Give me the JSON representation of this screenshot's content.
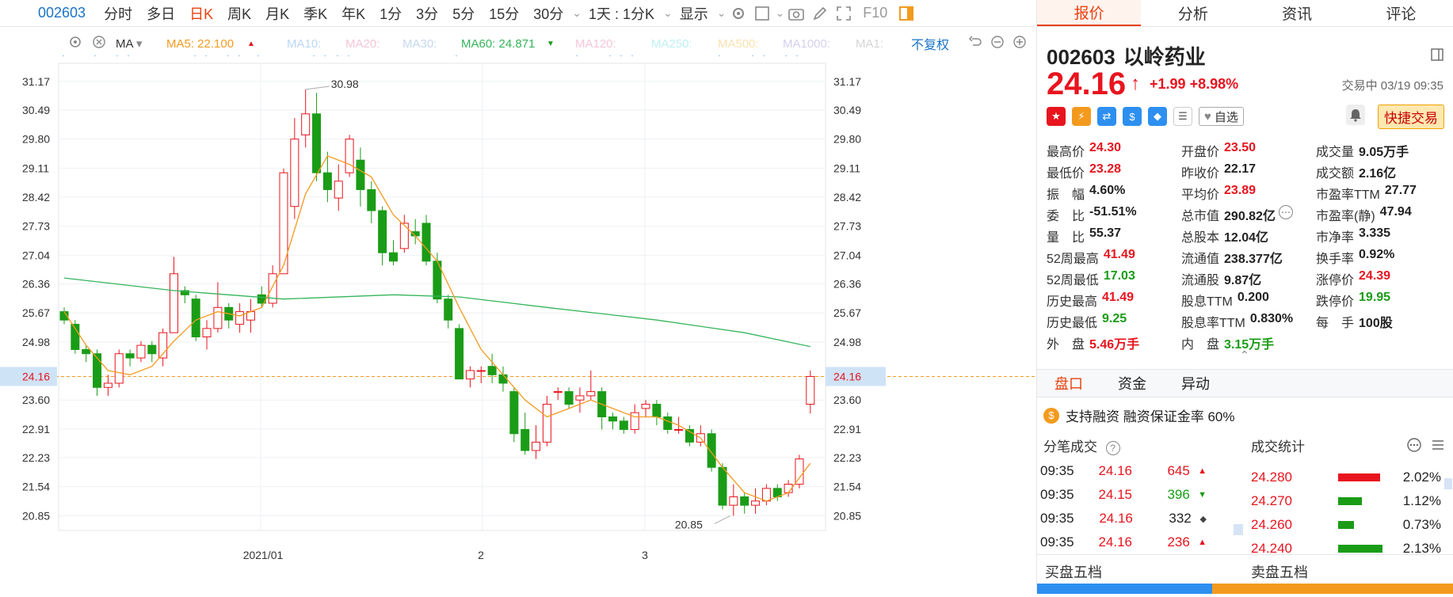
{
  "toolbar": {
    "code": "002603",
    "periods": [
      "分时",
      "多日",
      "日K",
      "周K",
      "月K",
      "季K",
      "年K",
      "1分",
      "3分",
      "5分",
      "15分",
      "30分"
    ],
    "active_period": "日K",
    "interval_select": "1天 : 1分K",
    "display_label": "显示",
    "f10": "F10"
  },
  "ma_bar": {
    "ma_label": "MA",
    "ma5": "MA5: 22.100",
    "ma10": "MA10:",
    "ma20": "MA20:",
    "ma30": "MA30:",
    "ma60": "MA60: 24.871",
    "ma120": "MA120:",
    "ma250": "MA250:",
    "ma500": "MA500:",
    "ma1000": "MA1000:",
    "ma1": "MA1:",
    "restore": "不复权"
  },
  "colors": {
    "up": "#e8141e",
    "down": "#1a9c17",
    "ma5": "#f39a1e",
    "ma60": "#34b45a",
    "accent": "#e8410f",
    "grid": "#eef0f4"
  },
  "chart_data": {
    "type": "candlestick",
    "y_ticks": [
      "31.17",
      "30.49",
      "29.80",
      "29.11",
      "28.42",
      "27.73",
      "27.04",
      "26.36",
      "25.67",
      "24.98",
      "24.16",
      "23.60",
      "22.91",
      "22.23",
      "21.54",
      "20.85"
    ],
    "ylim": [
      20.5,
      31.6
    ],
    "x_labels": [
      "2021/01",
      "2",
      "3"
    ],
    "current_price_label": "24.16",
    "high_annotation": "30.98",
    "low_annotation": "20.85",
    "candles": [
      [
        25.7,
        25.5,
        25.8,
        25.4
      ],
      [
        25.4,
        24.8,
        25.5,
        24.7
      ],
      [
        24.8,
        24.7,
        24.9,
        24.5
      ],
      [
        24.7,
        23.9,
        24.8,
        23.7
      ],
      [
        23.9,
        24.0,
        24.2,
        23.7
      ],
      [
        24.0,
        24.7,
        24.8,
        23.9
      ],
      [
        24.7,
        24.6,
        24.8,
        24.4
      ],
      [
        24.6,
        24.9,
        25.0,
        24.5
      ],
      [
        24.9,
        24.7,
        25.0,
        24.5
      ],
      [
        24.6,
        25.2,
        25.3,
        24.4
      ],
      [
        25.2,
        26.6,
        27.0,
        25.2
      ],
      [
        26.2,
        26.1,
        26.3,
        25.9
      ],
      [
        26.0,
        25.1,
        26.1,
        25.0
      ],
      [
        25.1,
        25.3,
        25.5,
        24.8
      ],
      [
        25.3,
        25.8,
        26.4,
        25.2
      ],
      [
        25.8,
        25.5,
        25.9,
        25.3
      ],
      [
        25.4,
        25.7,
        25.9,
        25.2
      ],
      [
        25.5,
        25.7,
        26.0,
        25.2
      ],
      [
        26.1,
        25.9,
        26.3,
        25.8
      ],
      [
        25.9,
        26.6,
        26.8,
        25.8
      ],
      [
        26.6,
        29.0,
        29.1,
        26.6
      ],
      [
        28.2,
        29.8,
        30.3,
        27.9
      ],
      [
        29.9,
        30.4,
        30.98,
        29.6
      ],
      [
        30.4,
        29.0,
        30.9,
        28.8
      ],
      [
        29.0,
        28.6,
        29.5,
        28.3
      ],
      [
        28.4,
        28.8,
        29.2,
        28.1
      ],
      [
        29.0,
        29.8,
        29.9,
        28.9
      ],
      [
        29.3,
        28.6,
        29.6,
        28.2
      ],
      [
        28.6,
        28.1,
        28.8,
        27.8
      ],
      [
        28.1,
        27.1,
        28.2,
        26.8
      ],
      [
        27.1,
        26.9,
        27.4,
        26.8
      ],
      [
        27.2,
        27.8,
        28.0,
        27.1
      ],
      [
        27.6,
        27.5,
        27.9,
        27.3
      ],
      [
        27.8,
        26.9,
        28.0,
        26.8
      ],
      [
        26.9,
        26.0,
        27.1,
        25.9
      ],
      [
        26.0,
        25.5,
        26.1,
        25.3
      ],
      [
        25.3,
        24.1,
        25.4,
        24.1
      ],
      [
        24.1,
        24.3,
        24.4,
        23.9
      ],
      [
        24.3,
        24.3,
        24.4,
        24.0
      ],
      [
        24.4,
        24.2,
        24.7,
        24.0
      ],
      [
        24.2,
        24.0,
        24.4,
        23.8
      ],
      [
        23.8,
        22.8,
        23.9,
        22.6
      ],
      [
        22.9,
        22.4,
        23.3,
        22.3
      ],
      [
        22.4,
        22.6,
        23.0,
        22.2
      ],
      [
        22.6,
        23.5,
        23.7,
        22.5
      ],
      [
        23.8,
        23.8,
        23.9,
        23.6
      ],
      [
        23.8,
        23.5,
        23.9,
        23.4
      ],
      [
        23.6,
        23.7,
        23.9,
        23.3
      ],
      [
        23.7,
        23.8,
        24.3,
        23.6
      ],
      [
        23.8,
        23.2,
        23.9,
        22.9
      ],
      [
        23.2,
        23.1,
        23.3,
        22.9
      ],
      [
        23.1,
        22.9,
        23.2,
        22.8
      ],
      [
        22.9,
        23.3,
        23.5,
        22.8
      ],
      [
        23.4,
        23.5,
        23.6,
        23.2
      ],
      [
        23.5,
        23.2,
        23.6,
        23.0
      ],
      [
        23.2,
        22.9,
        23.3,
        22.8
      ],
      [
        22.9,
        22.9,
        23.2,
        22.8
      ],
      [
        22.9,
        22.6,
        23.0,
        22.5
      ],
      [
        22.6,
        22.8,
        23.0,
        22.5
      ],
      [
        22.8,
        22.0,
        22.9,
        21.9
      ],
      [
        22.0,
        21.1,
        22.1,
        21.0
      ],
      [
        21.1,
        21.3,
        21.6,
        20.85
      ],
      [
        21.3,
        21.1,
        21.4,
        20.9
      ],
      [
        21.1,
        21.2,
        21.5,
        20.9
      ],
      [
        21.2,
        21.5,
        21.6,
        21.1
      ],
      [
        21.5,
        21.3,
        21.6,
        21.2
      ],
      [
        21.4,
        21.6,
        21.7,
        21.3
      ],
      [
        21.6,
        22.2,
        22.3,
        21.5
      ],
      [
        23.5,
        24.16,
        24.3,
        23.28
      ]
    ],
    "ma5": [
      [
        0,
        25.7
      ],
      [
        2,
        24.9
      ],
      [
        4,
        24.3
      ],
      [
        6,
        24.2
      ],
      [
        8,
        24.4
      ],
      [
        10,
        25.0
      ],
      [
        12,
        25.5
      ],
      [
        14,
        25.7
      ],
      [
        16,
        25.6
      ],
      [
        18,
        25.8
      ],
      [
        20,
        26.8
      ],
      [
        22,
        28.5
      ],
      [
        24,
        29.4
      ],
      [
        26,
        29.2
      ],
      [
        28,
        28.9
      ],
      [
        30,
        28.0
      ],
      [
        32,
        27.5
      ],
      [
        34,
        26.9
      ],
      [
        36,
        25.8
      ],
      [
        38,
        24.8
      ],
      [
        40,
        24.2
      ],
      [
        42,
        23.6
      ],
      [
        44,
        23.2
      ],
      [
        46,
        23.4
      ],
      [
        48,
        23.6
      ],
      [
        50,
        23.4
      ],
      [
        52,
        23.2
      ],
      [
        54,
        23.2
      ],
      [
        56,
        23.0
      ],
      [
        58,
        22.7
      ],
      [
        60,
        22.0
      ],
      [
        62,
        21.4
      ],
      [
        64,
        21.2
      ],
      [
        66,
        21.4
      ],
      [
        68,
        22.1
      ]
    ],
    "ma60": [
      [
        0,
        26.5
      ],
      [
        10,
        26.2
      ],
      [
        20,
        26.0
      ],
      [
        30,
        26.1
      ],
      [
        36,
        26.05
      ],
      [
        44,
        25.8
      ],
      [
        54,
        25.5
      ],
      [
        62,
        25.2
      ],
      [
        68,
        24.87
      ]
    ]
  },
  "stock": {
    "code": "002603",
    "name": "以岭药业",
    "price": "24.16",
    "change": "+1.99",
    "change_pct": "+8.98%",
    "status": "交易中 03/19 09:35"
  },
  "icons_row": {
    "zixuan_label": "自选",
    "fast_trade": "快捷交易"
  },
  "right_tabs": [
    "报价",
    "分析",
    "资讯",
    "评论"
  ],
  "quote": [
    [
      {
        "label": "最高价",
        "value": "24.30",
        "color": "red"
      },
      {
        "label": "开盘价",
        "value": "23.50",
        "color": "red"
      },
      {
        "label": "成交量",
        "value": "9.05万手",
        "color": "dark"
      }
    ],
    [
      {
        "label": "最低价",
        "value": "23.28",
        "color": "red"
      },
      {
        "label": "昨收价",
        "value": "22.17",
        "color": "dark"
      },
      {
        "label": "成交额",
        "value": "2.16亿",
        "color": "dark"
      }
    ],
    [
      {
        "label": "振　幅",
        "value": "4.60%",
        "color": "dark"
      },
      {
        "label": "平均价",
        "value": "23.89",
        "color": "red"
      },
      {
        "label": "市盈率TTM",
        "value": "27.77",
        "color": "dark"
      }
    ],
    [
      {
        "label": "委　比",
        "value": "-51.51%",
        "color": "dark"
      },
      {
        "label": "总市值",
        "value": "290.82亿",
        "color": "dark"
      },
      {
        "label": "市盈率(静)",
        "value": "47.94",
        "color": "dark"
      }
    ],
    [
      {
        "label": "量　比",
        "value": "55.37",
        "color": "dark"
      },
      {
        "label": "总股本",
        "value": "12.04亿",
        "color": "dark"
      },
      {
        "label": "市净率",
        "value": "3.335",
        "color": "dark"
      }
    ],
    [
      {
        "label": "52周最高",
        "value": "41.49",
        "color": "red"
      },
      {
        "label": "流通值",
        "value": "238.377亿",
        "color": "dark"
      },
      {
        "label": "换手率",
        "value": "0.92%",
        "color": "dark"
      }
    ],
    [
      {
        "label": "52周最低",
        "value": "17.03",
        "color": "green"
      },
      {
        "label": "流通股",
        "value": "9.87亿",
        "color": "dark"
      },
      {
        "label": "涨停价",
        "value": "24.39",
        "color": "red"
      }
    ],
    [
      {
        "label": "历史最高",
        "value": "41.49",
        "color": "red"
      },
      {
        "label": "股息TTM",
        "value": "0.200",
        "color": "dark"
      },
      {
        "label": "跌停价",
        "value": "19.95",
        "color": "green"
      }
    ],
    [
      {
        "label": "历史最低",
        "value": "9.25",
        "color": "green"
      },
      {
        "label": "股息率TTM",
        "value": "0.830%",
        "color": "dark"
      },
      {
        "label": "每　手",
        "value": "100股",
        "color": "dark"
      }
    ],
    [
      {
        "label": "外　盘",
        "value": "5.46万手",
        "color": "red"
      },
      {
        "label": "内　盘",
        "value": "3.15万手",
        "color": "green"
      },
      {
        "label": "",
        "value": "",
        "color": "dark"
      }
    ]
  ],
  "sub_tabs": [
    "盘口",
    "资金",
    "异动"
  ],
  "margin_text": "支持融资 融资保证金率 60%",
  "tick_header": "分笔成交",
  "stats_header": "成交统计",
  "ticks": [
    {
      "time": "09:35",
      "price": "24.16",
      "vol": "645",
      "dir": "up",
      "color": "red"
    },
    {
      "time": "09:35",
      "price": "24.15",
      "vol": "396",
      "dir": "down",
      "color": "green"
    },
    {
      "time": "09:35",
      "price": "24.16",
      "vol": "332",
      "dir": "flat",
      "color": "dark"
    },
    {
      "time": "09:35",
      "price": "24.16",
      "vol": "236",
      "dir": "up",
      "color": "red"
    }
  ],
  "stats": [
    {
      "price": "24.280",
      "pct": "2.02%",
      "share": 0.95,
      "color": "#e8141e"
    },
    {
      "price": "24.270",
      "pct": "1.12%",
      "share": 0.53,
      "color": "#1a9c17"
    },
    {
      "price": "24.260",
      "pct": "0.73%",
      "share": 0.35,
      "color": "#1a9c17"
    },
    {
      "price": "24.240",
      "pct": "2.13%",
      "share": 1.0,
      "color": "#1a9c17"
    }
  ],
  "bottom": {
    "buy_label": "买盘五档",
    "sell_label": "卖盘五档",
    "buy_share": 0.42
  }
}
